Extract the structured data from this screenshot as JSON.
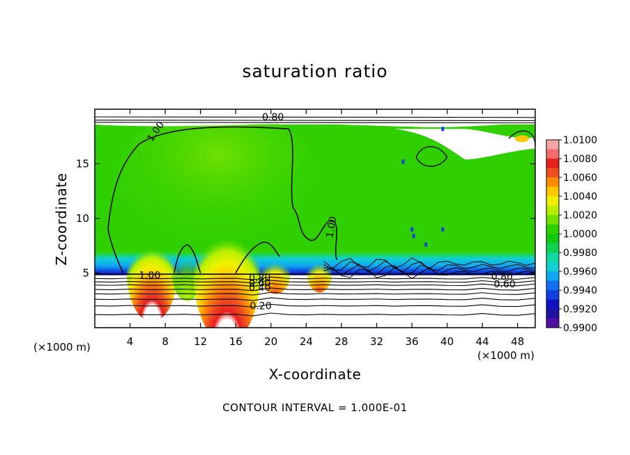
{
  "chart_data": {
    "type": "heatmap",
    "title": "saturation ratio",
    "xlabel": "X-coordinate",
    "ylabel": "Z-coordinate",
    "x_unit": "(×1000 m)",
    "y_unit": "(×1000 m)",
    "xlim": [
      0,
      50
    ],
    "ylim": [
      0,
      20
    ],
    "x_ticks": [
      4,
      8,
      12,
      16,
      20,
      24,
      28,
      32,
      36,
      40,
      44,
      48
    ],
    "y_ticks": [
      5,
      10,
      15
    ],
    "colorbar": {
      "min": 0.99,
      "max": 1.01,
      "step": 0.001,
      "tick_values": [
        1.01,
        1.008,
        1.006,
        1.004,
        1.002,
        1.0,
        0.998,
        0.996,
        0.994,
        0.992,
        0.99
      ],
      "tick_labels": [
        "1.0100",
        "1.0080",
        "1.0060",
        "1.0040",
        "1.0020",
        "1.0000",
        "0.9980",
        "0.9960",
        "0.9940",
        "0.9920",
        "0.9900"
      ],
      "colors": [
        "#f5a5a5",
        "#f26c6c",
        "#e82020",
        "#f05020",
        "#ff8c00",
        "#ffc800",
        "#f0f000",
        "#b8f000",
        "#70e000",
        "#30d000",
        "#10c810",
        "#10d050",
        "#10d8a0",
        "#10d0d0",
        "#10a8f0",
        "#1070f0",
        "#1040e0",
        "#1010c0",
        "#2010a0",
        "#5010a0"
      ]
    },
    "contour_interval": 0.1,
    "contour_labels": [
      {
        "text": "0.80",
        "x": 19.0,
        "y": 19.3
      },
      {
        "text": "1.00",
        "x": 6.5,
        "y": 17.3
      },
      {
        "text": "1.00",
        "x": 27.0,
        "y": 8.5
      },
      {
        "text": "1.00",
        "x": 5.0,
        "y": 4.8
      },
      {
        "text": "0.80",
        "x": 17.5,
        "y": 4.6
      },
      {
        "text": "0.60",
        "x": 17.5,
        "y": 4.1
      },
      {
        "text": "0.40",
        "x": 17.5,
        "y": 3.7
      },
      {
        "text": "0.20",
        "x": 17.6,
        "y": 2.0
      },
      {
        "text": "0.80",
        "x": 45.0,
        "y": 4.7
      },
      {
        "text": "0.60",
        "x": 45.3,
        "y": 4.0
      }
    ],
    "regions": [
      {
        "name": "upper-layer",
        "value": 1.0015
      },
      {
        "name": "dry-stratosphere",
        "value": null
      },
      {
        "name": "boundary-layer-blue-band",
        "value": 0.993
      },
      {
        "name": "supersaturated-cell-1",
        "x": 6.5,
        "value": 1.009
      },
      {
        "name": "supersaturated-cell-2",
        "x": 10.5,
        "value": 1.002
      },
      {
        "name": "supersaturated-cell-3",
        "x": 15.0,
        "value": 1.01
      },
      {
        "name": "supersaturated-cell-4",
        "x": 20.5,
        "value": 1.006
      },
      {
        "name": "supersaturated-cell-5",
        "x": 25.5,
        "value": 1.008
      }
    ]
  },
  "footnote": "CONTOUR INTERVAL = 1.000E-01"
}
